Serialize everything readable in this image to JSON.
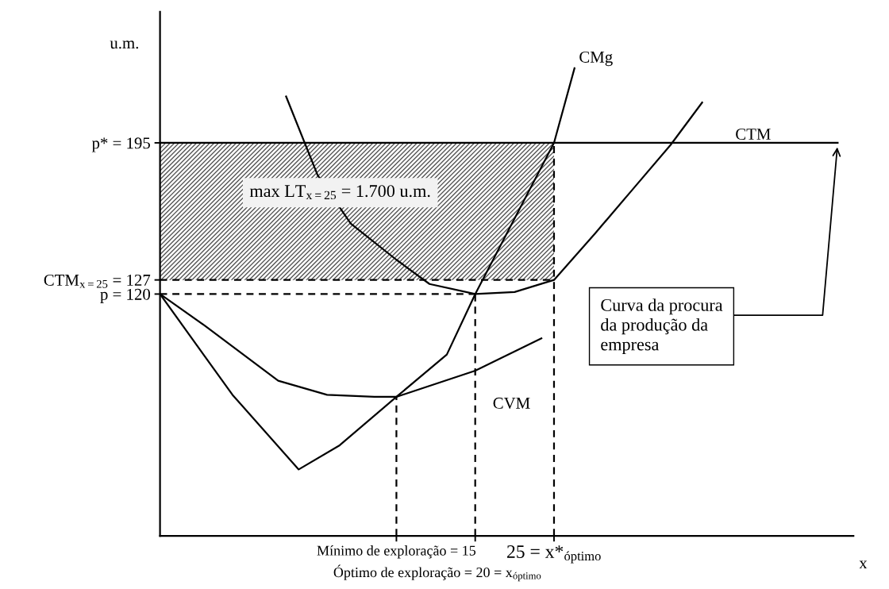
{
  "chart_data": {
    "type": "line",
    "ylabel": "u.m.",
    "xlabel": "x",
    "xlim": [
      0,
      44
    ],
    "ylim": [
      0,
      260
    ],
    "xticks": [
      {
        "value": 15,
        "label": "Mínimo de exploração = 15"
      },
      {
        "value": 20,
        "label": null
      },
      {
        "value": 25,
        "label": "25 = x*$_{óptimo}$"
      }
    ],
    "yticks": [
      {
        "value": 195,
        "label": "p* = 195"
      },
      {
        "value": 127,
        "label": "CTM$_{x=25}$ = 127"
      },
      {
        "value": 120,
        "label": "p = 120"
      }
    ],
    "grid": false,
    "legend": false,
    "marker": "none",
    "series": [
      {
        "type": "line",
        "color": "#555555",
        "x": [
          0,
          25
        ],
        "values": [
          null,
          null
        ],
        "lower": [
          127,
          127
        ],
        "upper": [
          195,
          195
        ]
      },
      {
        "name": "CMg",
        "color": "#000000",
        "x": [
          0,
          4.6,
          8.8,
          11.4,
          15,
          18.2,
          20,
          25,
          26.3
        ],
        "values": [
          120,
          70,
          33,
          45,
          69,
          90,
          120,
          195,
          232
        ]
      },
      {
        "name": "CTM",
        "color": "#000000",
        "x": [
          8,
          10,
          12.1,
          15,
          17.1,
          20,
          22.5,
          25,
          27.6,
          30,
          32.4,
          34.4
        ],
        "values": [
          218,
          179,
          155,
          137,
          125,
          120,
          121,
          127,
          150,
          172,
          194,
          215
        ]
      },
      {
        "name": "CVM",
        "color": "#000000",
        "x": [
          0,
          2.9,
          7.5,
          10.6,
          13.6,
          15,
          20,
          24.2
        ],
        "values": [
          120,
          104,
          77,
          70,
          69,
          69,
          82,
          98
        ]
      },
      {
        "color": "#000000",
        "x": [
          0,
          43
        ],
        "values": [
          195,
          195
        ]
      },
      {
        "color": "#000000",
        "line_style": "dashed",
        "x": [
          0,
          25
        ],
        "values": [
          127,
          127
        ]
      },
      {
        "color": "#000000",
        "line_style": "dashed",
        "x": [
          0,
          20
        ],
        "values": [
          120,
          120
        ]
      },
      {
        "color": "#000000",
        "line_style": "dashed",
        "x": [
          15,
          15
        ],
        "values": [
          0,
          69
        ]
      },
      {
        "color": "#000000",
        "line_style": "dashed",
        "x": [
          20,
          20
        ],
        "values": [
          0,
          120
        ]
      },
      {
        "color": "#000000",
        "line_style": "dashed",
        "x": [
          25,
          25
        ],
        "values": [
          0,
          195
        ]
      }
    ],
    "annotations": [
      "max LT$_{x=25}$ = 1.700 u.m.",
      {
        "text": "Curva da procura\nda produção da\nempresa",
        "x": 43,
        "y": 195
      },
      "Óptimo de exploração = 20 = x$_{óptimo}$"
    ]
  }
}
